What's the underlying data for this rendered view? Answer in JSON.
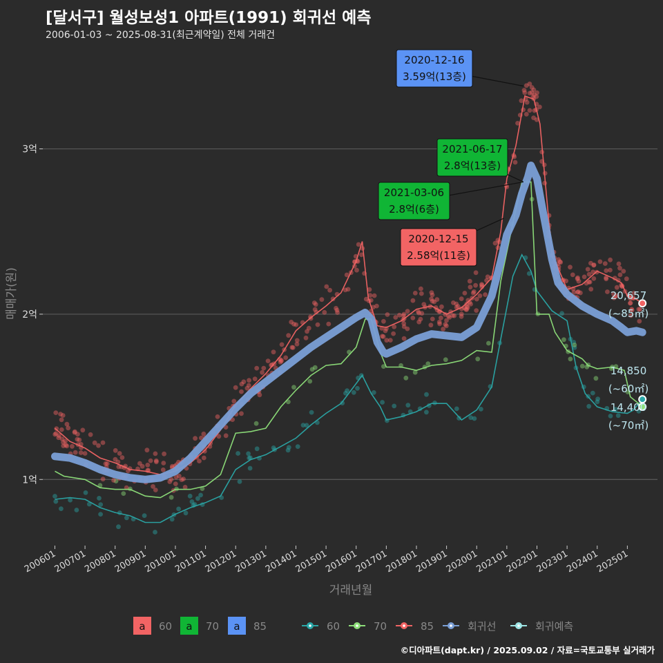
{
  "header": {
    "title": "[달서구] 월성보성1 아파트(1991) 회귀선 예측",
    "subtitle": "2006-01-03 ~ 2025-08-31(최근계약일) 전체 거래건"
  },
  "footer": {
    "credit": "©디아파트(dapt.kr) / 2025.09.02 / 자료=국토교통부 실거래가"
  },
  "colors": {
    "background": "#2b2b2b",
    "grid": "#5a5a5a",
    "s60": "#2aa7a7",
    "s70": "#8ee07a",
    "s85": "#f26464",
    "regression": "#7a9fd6",
    "forecast": "#9ee6e6",
    "box60": "#f26464",
    "box70": "#10b535",
    "box85": "#5b93f5"
  },
  "chart_data": {
    "type": "scatter",
    "title": "[달서구] 월성보성1 아파트(1991) 회귀선 예측",
    "xlabel": "거래년월",
    "ylabel": "매매가(원)",
    "ylim": [
      6000,
      36500
    ],
    "xlim": [
      2005.6,
      2026.0
    ],
    "yticks": [
      10000,
      20000,
      30000
    ],
    "ytick_labels": [
      "1억",
      "2억",
      "3억"
    ],
    "xticks": [
      2006,
      2007,
      2008,
      2009,
      2010,
      2011,
      2012,
      2013,
      2014,
      2015,
      2016,
      2017,
      2018,
      2019,
      2020,
      2021,
      2022,
      2023,
      2024,
      2025
    ],
    "xtick_labels": [
      "200601",
      "200701",
      "200801",
      "200901",
      "201001",
      "201101",
      "201201",
      "201301",
      "201401",
      "201501",
      "201601",
      "201701",
      "201801",
      "201901",
      "202001",
      "202101",
      "202201",
      "202301",
      "202401",
      "202501"
    ],
    "series": [
      {
        "name": "60",
        "color": "#2aa7a7",
        "line": [
          [
            2006.0,
            8800
          ],
          [
            2006.5,
            8900
          ],
          [
            2007.0,
            8800
          ],
          [
            2007.5,
            8300
          ],
          [
            2008.0,
            8000
          ],
          [
            2008.5,
            7800
          ],
          [
            2009.0,
            7400
          ],
          [
            2009.5,
            7400
          ],
          [
            2010.0,
            7900
          ],
          [
            2010.5,
            8300
          ],
          [
            2011.0,
            8600
          ],
          [
            2011.5,
            9000
          ],
          [
            2012.0,
            10600
          ],
          [
            2012.5,
            11200
          ],
          [
            2013.0,
            11500
          ],
          [
            2013.5,
            12000
          ],
          [
            2014.0,
            12500
          ],
          [
            2014.5,
            13300
          ],
          [
            2015.0,
            14000
          ],
          [
            2015.5,
            14600
          ],
          [
            2016.0,
            15800
          ],
          [
            2016.2,
            16300
          ],
          [
            2016.5,
            15200
          ],
          [
            2016.8,
            14400
          ],
          [
            2017.0,
            13600
          ],
          [
            2017.5,
            13800
          ],
          [
            2018.0,
            14100
          ],
          [
            2018.5,
            14600
          ],
          [
            2019.0,
            14600
          ],
          [
            2019.5,
            13600
          ],
          [
            2020.0,
            14200
          ],
          [
            2020.5,
            15600
          ],
          [
            2020.8,
            18500
          ],
          [
            2021.2,
            22300
          ],
          [
            2021.5,
            23600
          ],
          [
            2021.8,
            22600
          ],
          [
            2022.0,
            21400
          ],
          [
            2022.5,
            20200
          ],
          [
            2023.0,
            19600
          ],
          [
            2023.3,
            16800
          ],
          [
            2023.6,
            15200
          ],
          [
            2024.0,
            14400
          ],
          [
            2024.5,
            14100
          ],
          [
            2025.0,
            14000
          ],
          [
            2025.2,
            14200
          ],
          [
            2025.5,
            14850
          ]
        ]
      },
      {
        "name": "70",
        "color": "#8ee07a",
        "line": [
          [
            2006.0,
            10500
          ],
          [
            2006.3,
            10200
          ],
          [
            2007.0,
            10000
          ],
          [
            2007.5,
            9500
          ],
          [
            2008.0,
            9400
          ],
          [
            2008.5,
            9400
          ],
          [
            2009.0,
            9000
          ],
          [
            2009.5,
            8900
          ],
          [
            2010.0,
            9400
          ],
          [
            2010.5,
            9400
          ],
          [
            2011.0,
            9600
          ],
          [
            2011.5,
            10300
          ],
          [
            2012.0,
            12800
          ],
          [
            2012.5,
            12900
          ],
          [
            2013.0,
            13100
          ],
          [
            2013.5,
            14400
          ],
          [
            2014.0,
            15400
          ],
          [
            2014.5,
            16300
          ],
          [
            2015.0,
            16900
          ],
          [
            2015.5,
            17000
          ],
          [
            2016.0,
            18000
          ],
          [
            2016.3,
            19700
          ],
          [
            2016.5,
            19700
          ],
          [
            2016.8,
            17700
          ],
          [
            2017.0,
            16800
          ],
          [
            2017.5,
            16800
          ],
          [
            2018.0,
            16600
          ],
          [
            2018.5,
            16900
          ],
          [
            2019.0,
            17000
          ],
          [
            2019.5,
            17200
          ],
          [
            2020.0,
            17800
          ],
          [
            2020.5,
            17700
          ],
          [
            2020.8,
            22000
          ],
          [
            2021.2,
            25500
          ],
          [
            2021.5,
            28000
          ],
          [
            2021.8,
            28000
          ],
          [
            2022.0,
            20000
          ],
          [
            2022.4,
            20000
          ],
          [
            2022.6,
            18900
          ],
          [
            2023.0,
            17800
          ],
          [
            2023.5,
            17300
          ],
          [
            2023.7,
            16900
          ],
          [
            2024.0,
            16700
          ],
          [
            2024.5,
            16800
          ],
          [
            2024.9,
            16600
          ],
          [
            2025.1,
            15000
          ],
          [
            2025.3,
            14700
          ],
          [
            2025.5,
            14400
          ]
        ]
      },
      {
        "name": "85",
        "color": "#f26464",
        "line": [
          [
            2006.0,
            13100
          ],
          [
            2006.5,
            12300
          ],
          [
            2007.0,
            11900
          ],
          [
            2007.5,
            11300
          ],
          [
            2008.0,
            11000
          ],
          [
            2008.5,
            10600
          ],
          [
            2009.0,
            10500
          ],
          [
            2009.5,
            10300
          ],
          [
            2010.0,
            10500
          ],
          [
            2010.5,
            11000
          ],
          [
            2011.0,
            11800
          ],
          [
            2011.5,
            13000
          ],
          [
            2012.0,
            14500
          ],
          [
            2012.5,
            15500
          ],
          [
            2013.0,
            16400
          ],
          [
            2013.5,
            17500
          ],
          [
            2014.0,
            19000
          ],
          [
            2014.5,
            19800
          ],
          [
            2015.0,
            20500
          ],
          [
            2015.5,
            21300
          ],
          [
            2016.0,
            23200
          ],
          [
            2016.2,
            24400
          ],
          [
            2016.4,
            21000
          ],
          [
            2016.7,
            19300
          ],
          [
            2017.0,
            19200
          ],
          [
            2017.5,
            19600
          ],
          [
            2018.0,
            20300
          ],
          [
            2018.5,
            20500
          ],
          [
            2019.0,
            20000
          ],
          [
            2019.5,
            20400
          ],
          [
            2020.0,
            21200
          ],
          [
            2020.5,
            22200
          ],
          [
            2020.8,
            25000
          ],
          [
            2021.0,
            28200
          ],
          [
            2021.3,
            30200
          ],
          [
            2021.6,
            33200
          ],
          [
            2021.9,
            33000
          ],
          [
            2022.1,
            31500
          ],
          [
            2022.3,
            27500
          ],
          [
            2022.5,
            23500
          ],
          [
            2022.7,
            22800
          ],
          [
            2023.0,
            21500
          ],
          [
            2023.5,
            21800
          ],
          [
            2024.0,
            22600
          ],
          [
            2024.5,
            22200
          ],
          [
            2024.8,
            21900
          ],
          [
            2025.0,
            21100
          ],
          [
            2025.3,
            20900
          ],
          [
            2025.5,
            20657
          ]
        ]
      }
    ],
    "regression": {
      "name": "회귀선",
      "color": "#7a9fd6",
      "points": [
        [
          2006.0,
          11400
        ],
        [
          2006.5,
          11300
        ],
        [
          2007.0,
          11000
        ],
        [
          2007.5,
          10600
        ],
        [
          2008.0,
          10300
        ],
        [
          2008.5,
          10100
        ],
        [
          2009.0,
          10000
        ],
        [
          2009.5,
          10100
        ],
        [
          2010.0,
          10500
        ],
        [
          2010.5,
          11300
        ],
        [
          2011.0,
          12300
        ],
        [
          2011.5,
          13300
        ],
        [
          2012.0,
          14300
        ],
        [
          2012.5,
          15200
        ],
        [
          2013.0,
          15900
        ],
        [
          2013.5,
          16600
        ],
        [
          2014.0,
          17300
        ],
        [
          2014.5,
          18000
        ],
        [
          2015.0,
          18600
        ],
        [
          2015.5,
          19200
        ],
        [
          2016.0,
          19800
        ],
        [
          2016.3,
          20100
        ],
        [
          2016.5,
          19700
        ],
        [
          2016.7,
          18300
        ],
        [
          2016.9,
          17700
        ],
        [
          2017.0,
          17600
        ],
        [
          2017.5,
          18000
        ],
        [
          2018.0,
          18500
        ],
        [
          2018.5,
          18800
        ],
        [
          2019.0,
          18700
        ],
        [
          2019.5,
          18600
        ],
        [
          2020.0,
          19200
        ],
        [
          2020.5,
          21100
        ],
        [
          2020.8,
          23200
        ],
        [
          2021.0,
          24800
        ],
        [
          2021.3,
          26000
        ],
        [
          2021.5,
          27300
        ],
        [
          2021.7,
          28300
        ],
        [
          2021.8,
          29000
        ],
        [
          2022.0,
          28200
        ],
        [
          2022.2,
          26200
        ],
        [
          2022.5,
          23300
        ],
        [
          2022.7,
          21900
        ],
        [
          2023.0,
          21200
        ],
        [
          2023.5,
          20500
        ],
        [
          2024.0,
          20000
        ],
        [
          2024.5,
          19600
        ],
        [
          2024.8,
          19200
        ],
        [
          2025.0,
          18900
        ],
        [
          2025.3,
          19000
        ],
        [
          2025.5,
          18900
        ]
      ]
    },
    "end_labels": [
      {
        "value": "20,657",
        "unit": "(~85㎡)",
        "color": "#f26464"
      },
      {
        "value": "14,850",
        "unit": "(~60㎡)",
        "color": "#2aa7a7"
      },
      {
        "value": "14,400",
        "unit": "(~70㎡)",
        "color": "#8ee07a"
      }
    ],
    "annotations": [
      {
        "date": "2020-12-16",
        "price": "3.59억(13층)",
        "x": 2021.2,
        "y": 35900,
        "color": "#5b93f5"
      },
      {
        "date": "2021-06-17",
        "price": "2.8억(13층)",
        "x": 2021.5,
        "y": 28000,
        "color": "#10b535"
      },
      {
        "date": "2021-03-06",
        "price": "2.8억(6층)",
        "x": 2021.7,
        "y": 28000,
        "color": "#10b535"
      },
      {
        "date": "2020-12-15",
        "price": "2.58억(11층)",
        "x": 2020.9,
        "y": 25800,
        "color": "#f26464"
      }
    ],
    "legend": {
      "boxes": [
        {
          "glyph": "a",
          "label": "60"
        },
        {
          "glyph": "a",
          "label": "70"
        },
        {
          "glyph": "a",
          "label": "85"
        }
      ],
      "lines": [
        {
          "label": "60"
        },
        {
          "label": "70"
        },
        {
          "label": "85"
        },
        {
          "label": "회귀선"
        },
        {
          "label": "회귀예측"
        }
      ]
    }
  }
}
